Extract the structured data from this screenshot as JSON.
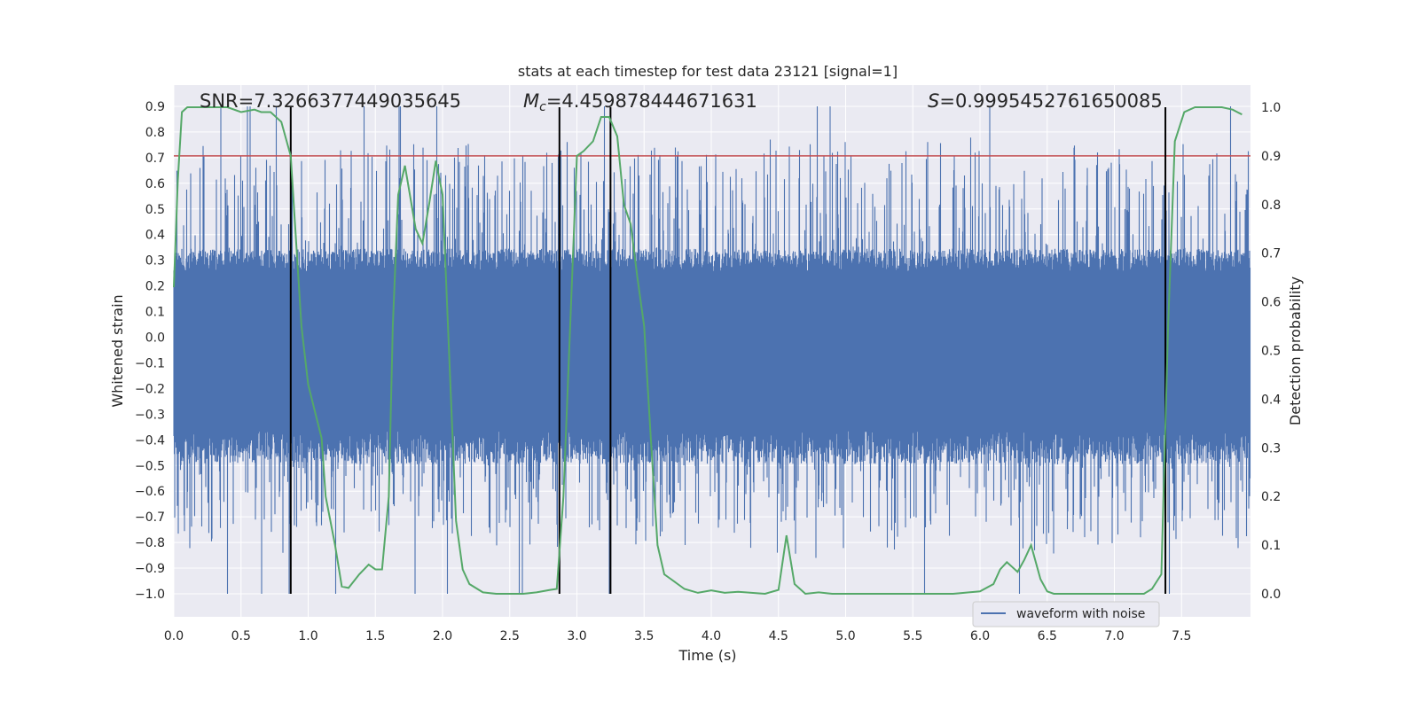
{
  "chart_data": {
    "type": "line",
    "title": "stats at each timestep for test data 23121 [signal=1]",
    "xlabel": "Time (s)",
    "ylabel": "Whitened strain",
    "y2label": "Detection probability",
    "xlim": [
      0.0,
      8.0
    ],
    "ylim": [
      -1.09,
      0.98
    ],
    "y2lim": [
      -0.045,
      1.045
    ],
    "xticks": [
      "0.0",
      "0.5",
      "1.0",
      "1.5",
      "2.0",
      "2.5",
      "3.0",
      "3.5",
      "4.0",
      "4.5",
      "5.0",
      "5.5",
      "6.0",
      "6.5",
      "7.0",
      "7.5"
    ],
    "yticks": [
      "0.9",
      "0.8",
      "0.7",
      "0.6",
      "0.5",
      "0.4",
      "0.3",
      "0.2",
      "0.1",
      "0.0",
      "−0.1",
      "−0.2",
      "−0.3",
      "−0.4",
      "−0.5",
      "−0.6",
      "−0.7",
      "−0.8",
      "−0.9",
      "−1.0"
    ],
    "y2ticks": [
      "1.0",
      "0.9",
      "0.8",
      "0.7",
      "0.6",
      "0.5",
      "0.4",
      "0.3",
      "0.2",
      "0.1",
      "0.0"
    ],
    "threshold": 0.9,
    "event_lines": [
      0.87,
      2.87,
      3.25,
      7.38
    ],
    "annotations": {
      "snr": "SNR=7.326637744903564​5",
      "mc_symbol": "M",
      "mc_sub": "c",
      "mc_value": "=4.459878444671631",
      "s_symbol": "S",
      "s_value": "=0.9995452761650085"
    },
    "waveform": {
      "name": "waveform with noise",
      "color": "#4c72b0",
      "sample_rate_hz": 2048,
      "duration_s": 8.0,
      "typical_max": 0.3,
      "typical_min": -0.43,
      "peak_max": 0.9,
      "peak_min": -1.0
    },
    "probability_series": {
      "color": "#55a868",
      "x": [
        0.0,
        0.03,
        0.06,
        0.1,
        0.2,
        0.3,
        0.4,
        0.5,
        0.6,
        0.65,
        0.72,
        0.8,
        0.87,
        0.95,
        1.0,
        1.1,
        1.13,
        1.2,
        1.25,
        1.3,
        1.38,
        1.45,
        1.5,
        1.55,
        1.6,
        1.63,
        1.67,
        1.72,
        1.8,
        1.85,
        1.9,
        1.95,
        2.0,
        2.1,
        2.15,
        2.2,
        2.3,
        2.4,
        2.5,
        2.6,
        2.7,
        2.8,
        2.85,
        2.9,
        2.95,
        3.0,
        3.05,
        3.12,
        3.18,
        3.24,
        3.3,
        3.35,
        3.4,
        3.45,
        3.5,
        3.55,
        3.6,
        3.65,
        3.7,
        3.8,
        3.9,
        4.0,
        4.1,
        4.2,
        4.3,
        4.4,
        4.5,
        4.56,
        4.62,
        4.7,
        4.8,
        4.9,
        5.0,
        5.2,
        5.4,
        5.6,
        5.8,
        6.0,
        6.1,
        6.15,
        6.2,
        6.28,
        6.33,
        6.38,
        6.45,
        6.5,
        6.55,
        6.6,
        6.8,
        7.0,
        7.15,
        7.22,
        7.28,
        7.35,
        7.4,
        7.45,
        7.52,
        7.6,
        7.7,
        7.8,
        7.88,
        7.95
      ],
      "y": [
        0.63,
        0.85,
        0.99,
        1.0,
        1.0,
        1.0,
        1.0,
        0.99,
        0.995,
        0.99,
        0.99,
        0.97,
        0.9,
        0.55,
        0.43,
        0.32,
        0.2,
        0.1,
        0.015,
        0.012,
        0.04,
        0.06,
        0.05,
        0.05,
        0.2,
        0.55,
        0.82,
        0.88,
        0.75,
        0.72,
        0.8,
        0.89,
        0.82,
        0.15,
        0.05,
        0.02,
        0.003,
        0.0,
        0.0,
        0.0,
        0.003,
        0.008,
        0.01,
        0.2,
        0.55,
        0.9,
        0.91,
        0.93,
        0.98,
        0.98,
        0.94,
        0.8,
        0.76,
        0.65,
        0.55,
        0.32,
        0.1,
        0.04,
        0.03,
        0.01,
        0.002,
        0.007,
        0.002,
        0.004,
        0.002,
        0.0,
        0.008,
        0.12,
        0.02,
        0.0,
        0.003,
        0.0,
        0.0,
        0.0,
        0.0,
        0.0,
        0.0,
        0.005,
        0.02,
        0.05,
        0.065,
        0.045,
        0.07,
        0.1,
        0.03,
        0.005,
        0.0,
        0.0,
        0.0,
        0.0,
        0.0,
        0.0,
        0.01,
        0.04,
        0.55,
        0.93,
        0.99,
        1.0,
        1.0,
        1.0,
        0.995,
        0.985
      ]
    },
    "legend": {
      "label": "waveform with noise",
      "position": "lower-right"
    }
  }
}
